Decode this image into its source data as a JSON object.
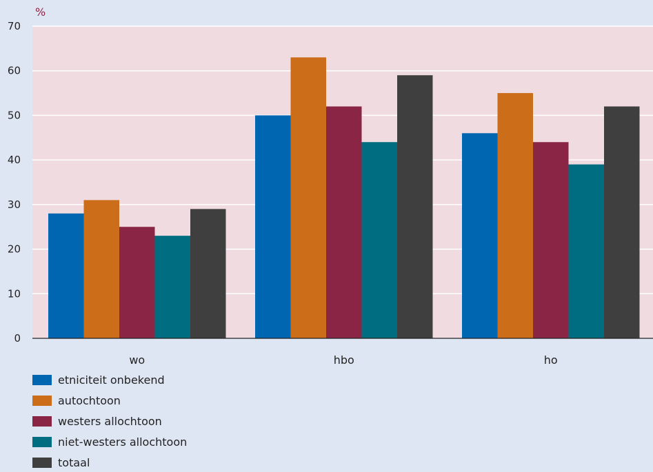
{
  "chart_data": {
    "type": "bar",
    "ylabel": "%",
    "ylim": [
      0,
      70
    ],
    "yticks": [
      0,
      10,
      20,
      30,
      40,
      50,
      60,
      70
    ],
    "categories": [
      "wo",
      "hbo",
      "ho"
    ],
    "series": [
      {
        "name": "etniciteit onbekend",
        "values": [
          28,
          50,
          46
        ],
        "color": "#0066b1"
      },
      {
        "name": "autochtoon",
        "values": [
          31,
          63,
          55
        ],
        "color": "#cc6d1a"
      },
      {
        "name": "westers allochtoon",
        "values": [
          25,
          52,
          44
        ],
        "color": "#8b2545"
      },
      {
        "name": "niet-westers allochtoon",
        "values": [
          23,
          44,
          39
        ],
        "color": "#006d80"
      },
      {
        "name": "totaal",
        "values": [
          29,
          59,
          52
        ],
        "color": "#3f3f3f"
      }
    ],
    "grid": true,
    "legend_position": "bottom-left",
    "plot_background": "#f0dbe0",
    "page_background": "#dfe6f3"
  }
}
